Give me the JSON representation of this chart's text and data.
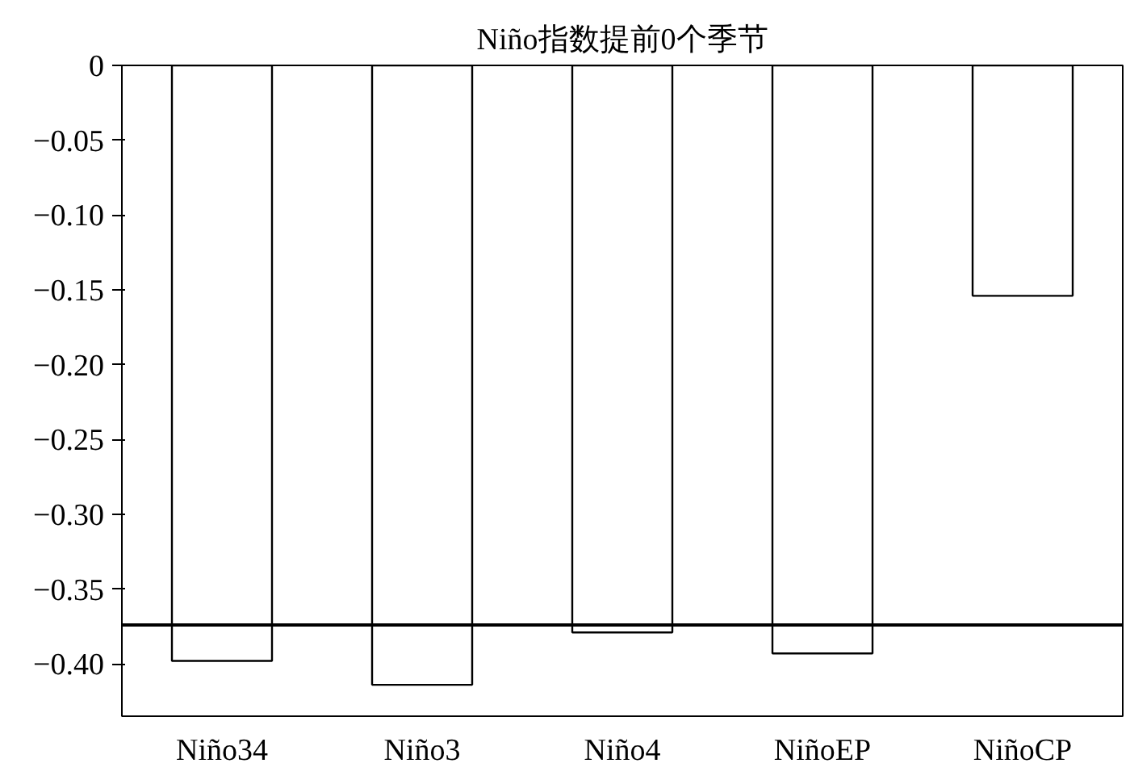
{
  "chart_data": {
    "type": "bar",
    "title": "Niño指数提前0个季节",
    "categories": [
      "Niño34",
      "Niño3",
      "Niño4",
      "NiñoEP",
      "NiñoCP"
    ],
    "values": [
      -0.398,
      -0.414,
      -0.379,
      -0.393,
      -0.154
    ],
    "color": "#ffffff",
    "ylim": [
      -0.435,
      0
    ],
    "yticks": [
      {
        "value": 0,
        "label": "0"
      },
      {
        "value": -0.05,
        "label": "−0.05"
      },
      {
        "value": -0.1,
        "label": "−0.10"
      },
      {
        "value": -0.15,
        "label": "−0.15"
      },
      {
        "value": -0.2,
        "label": "−0.20"
      },
      {
        "value": -0.25,
        "label": "−0.25"
      },
      {
        "value": -0.3,
        "label": "−0.30"
      },
      {
        "value": -0.35,
        "label": "−0.35"
      },
      {
        "value": -0.4,
        "label": "−0.40"
      }
    ],
    "ref_lines": [
      {
        "axis": "y",
        "value": -0.374,
        "color": "#000000"
      }
    ],
    "grid": false
  }
}
